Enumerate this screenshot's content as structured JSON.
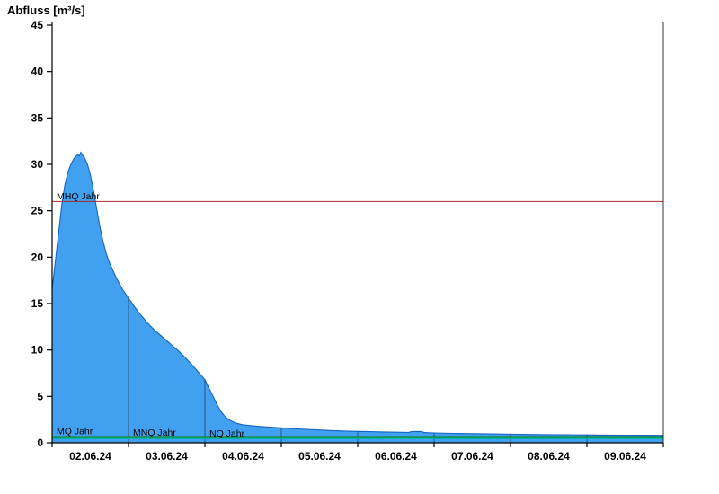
{
  "chart_data": {
    "type": "area",
    "title": "Abfluss [m³/s]",
    "ylabel": "Abfluss [m³/s]",
    "xlabel": "",
    "ylim": [
      0,
      45
    ],
    "y_ticks": [
      0,
      5,
      10,
      15,
      20,
      25,
      30,
      35,
      40,
      45
    ],
    "x_tick_labels": [
      "02.06.24",
      "03.06.24",
      "04.06.24",
      "05.06.24",
      "06.06.24",
      "07.06.24",
      "08.06.24",
      "09.06.24"
    ],
    "x_hours_total": 192,
    "series": [
      {
        "name": "Abfluss",
        "unit": "m³/s",
        "points": [
          [
            0,
            16.5
          ],
          [
            1,
            19.5
          ],
          [
            2,
            22.5
          ],
          [
            3,
            25.5
          ],
          [
            4,
            27.8
          ],
          [
            5,
            29.2
          ],
          [
            6,
            30.1
          ],
          [
            7,
            30.7
          ],
          [
            8,
            31.05
          ],
          [
            8.5,
            30.9
          ],
          [
            9,
            31.3
          ],
          [
            9.6,
            31.0
          ],
          [
            10,
            30.8
          ],
          [
            11,
            30.1
          ],
          [
            12,
            28.9
          ],
          [
            13,
            27.2
          ],
          [
            14,
            25.2
          ],
          [
            15,
            23.3
          ],
          [
            16,
            21.7
          ],
          [
            17,
            20.4
          ],
          [
            18,
            19.4
          ],
          [
            20,
            17.9
          ],
          [
            22,
            16.6
          ],
          [
            24,
            15.6
          ],
          [
            26,
            14.6
          ],
          [
            28,
            13.7
          ],
          [
            30,
            12.9
          ],
          [
            32,
            12.2
          ],
          [
            34,
            11.6
          ],
          [
            36,
            11.0
          ],
          [
            38,
            10.4
          ],
          [
            40,
            9.8
          ],
          [
            42,
            9.1
          ],
          [
            44,
            8.4
          ],
          [
            46,
            7.6
          ],
          [
            48,
            6.8
          ],
          [
            49,
            6.1
          ],
          [
            50,
            5.4
          ],
          [
            51,
            4.7
          ],
          [
            52,
            4.0
          ],
          [
            53,
            3.4
          ],
          [
            54,
            2.95
          ],
          [
            55,
            2.65
          ],
          [
            56,
            2.4
          ],
          [
            58,
            2.1
          ],
          [
            60,
            1.95
          ],
          [
            64,
            1.8
          ],
          [
            68,
            1.7
          ],
          [
            72,
            1.62
          ],
          [
            76,
            1.52
          ],
          [
            80,
            1.45
          ],
          [
            84,
            1.38
          ],
          [
            88,
            1.32
          ],
          [
            92,
            1.27
          ],
          [
            96,
            1.23
          ],
          [
            100,
            1.2
          ],
          [
            104,
            1.17
          ],
          [
            108,
            1.14
          ],
          [
            112,
            1.12
          ],
          [
            113,
            1.22
          ],
          [
            116,
            1.22
          ],
          [
            117,
            1.1
          ],
          [
            120,
            1.06
          ],
          [
            126,
            1.02
          ],
          [
            132,
            0.99
          ],
          [
            138,
            0.96
          ],
          [
            144,
            0.93
          ],
          [
            150,
            0.9
          ],
          [
            156,
            0.88
          ],
          [
            162,
            0.86
          ],
          [
            168,
            0.85
          ],
          [
            174,
            0.83
          ],
          [
            180,
            0.82
          ],
          [
            186,
            0.81
          ],
          [
            192,
            0.8
          ]
        ]
      }
    ],
    "reference_lines": [
      {
        "label": "MHQ Jahr",
        "value": 26,
        "color": "#a52a2a",
        "label_day_offset": 0
      },
      {
        "label": "MQ Jahr",
        "value": 0.68,
        "color": "#008000",
        "label_day_offset": 0
      },
      {
        "label": "MNQ Jahr",
        "value": 0.55,
        "color": "#009944",
        "label_day_offset": 1
      },
      {
        "label": "NQ Jahr",
        "value": 0.44,
        "color": "#00b2b2",
        "label_day_offset": 2
      }
    ],
    "colors": {
      "area_fill": "#42a0f0",
      "area_stroke": "#1565c0",
      "axis": "#000000",
      "day_line": "#23425f",
      "tick_label": "#000000"
    },
    "legend_position": "none",
    "grid_visible": false
  }
}
